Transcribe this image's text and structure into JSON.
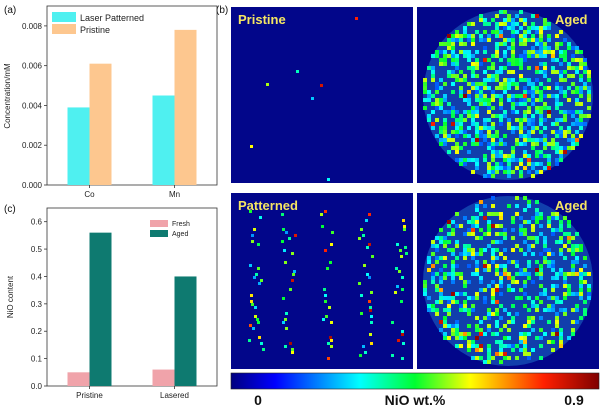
{
  "panels": {
    "a": "(a)",
    "b": "(b)",
    "c": "(c)"
  },
  "chart_data": [
    {
      "type": "bar",
      "panel": "(a)",
      "categories": [
        "Co",
        "Mn"
      ],
      "series": [
        {
          "name": "Laser Patterned",
          "values": [
            0.0039,
            0.0045
          ],
          "color": "#4ff0f0"
        },
        {
          "name": "Pristine",
          "values": [
            0.0061,
            0.0078
          ],
          "color": "#fdc78f"
        }
      ],
      "ylabel": "Concentration/mM",
      "ylim": [
        0,
        0.009
      ],
      "yticks": [
        "0.000",
        "0.002",
        "0.004",
        "0.006",
        "0.008"
      ],
      "ytick_values": [
        0,
        0.002,
        0.004,
        0.006,
        0.008
      ],
      "legend": "top-left"
    },
    {
      "type": "bar",
      "panel": "(c)",
      "categories": [
        "Pristine",
        "Lasered"
      ],
      "series": [
        {
          "name": "Fresh",
          "values": [
            0.05,
            0.06
          ],
          "color": "#f0a3aa"
        },
        {
          "name": "Aged",
          "values": [
            0.56,
            0.4
          ],
          "color": "#0e7a70"
        }
      ],
      "ylabel": "NiO content",
      "ylim": [
        0,
        0.65
      ],
      "yticks": [
        "0.0",
        "0.1",
        "0.2",
        "0.3",
        "0.4",
        "0.5",
        "0.6"
      ],
      "ytick_values": [
        0,
        0.1,
        0.2,
        0.3,
        0.4,
        0.5,
        0.6
      ],
      "legend": "top-right"
    }
  ],
  "maps": {
    "pristine": "Pristine",
    "aged_top": "Aged",
    "patterned": "Patterned",
    "aged_bottom": "Aged"
  },
  "colorbar": {
    "min_label": "0",
    "label": "NiO wt.%",
    "max_label": "0.9"
  }
}
